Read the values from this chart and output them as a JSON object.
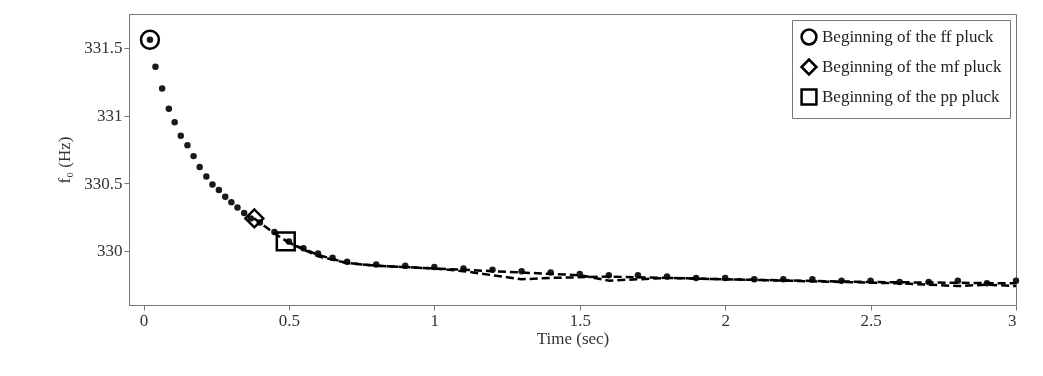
{
  "chart_data": {
    "type": "line",
    "xlabel": "Time (sec)",
    "ylabel": "f₀ (Hz)",
    "xlim": [
      -0.05,
      3
    ],
    "ylim": [
      329.6,
      331.75
    ],
    "xticks": [
      0,
      0.5,
      1,
      1.5,
      2,
      2.5,
      3
    ],
    "yticks": [
      330,
      330.5,
      331,
      331.5
    ],
    "grid": false,
    "legend": "top right",
    "series": [
      {
        "type": "scatter",
        "marker": "circle",
        "color": "#1a1a1a",
        "x": [
          0.022,
          0.041,
          0.064,
          0.087,
          0.107,
          0.128,
          0.151,
          0.172,
          0.193,
          0.216,
          0.237,
          0.259,
          0.281,
          0.302,
          0.323,
          0.346,
          0.369,
          0.4,
          0.45,
          0.5,
          0.55,
          0.6,
          0.65,
          0.7,
          0.8,
          0.9,
          1.0,
          1.1,
          1.2,
          1.3,
          1.4,
          1.5,
          1.6,
          1.7,
          1.8,
          1.9,
          2.0,
          2.1,
          2.2,
          2.3,
          2.4,
          2.5,
          2.6,
          2.7,
          2.8,
          2.9,
          3.0
        ],
        "values": [
          331.56,
          331.36,
          331.2,
          331.05,
          330.95,
          330.85,
          330.78,
          330.7,
          330.62,
          330.55,
          330.49,
          330.45,
          330.4,
          330.36,
          330.32,
          330.28,
          330.24,
          330.21,
          330.14,
          330.07,
          330.02,
          329.98,
          329.95,
          329.92,
          329.9,
          329.89,
          329.88,
          329.87,
          329.86,
          329.85,
          329.84,
          329.83,
          329.82,
          329.82,
          329.81,
          329.8,
          329.8,
          329.79,
          329.79,
          329.79,
          329.78,
          329.78,
          329.77,
          329.77,
          329.78,
          329.76,
          329.78
        ]
      },
      {
        "type": "line",
        "line_style": "dashed",
        "color": "#000000",
        "x": [
          0.38,
          0.45,
          0.5,
          0.6,
          0.7,
          0.8,
          1.0,
          1.1,
          1.2,
          1.3,
          1.4,
          1.6,
          1.8,
          2.0,
          2.5,
          3.0
        ],
        "values": [
          330.24,
          330.13,
          330.06,
          329.96,
          329.91,
          329.89,
          329.87,
          329.85,
          329.82,
          329.79,
          329.8,
          329.81,
          329.8,
          329.79,
          329.77,
          329.76
        ]
      },
      {
        "type": "line",
        "line_style": "dashed",
        "color": "#000000",
        "x": [
          0.49,
          0.6,
          0.7,
          0.8,
          1.0,
          1.2,
          1.4,
          1.5,
          1.6,
          1.8,
          2.0,
          2.2,
          2.4,
          2.6,
          2.8,
          2.9,
          3.0
        ],
        "values": [
          330.07,
          329.97,
          329.91,
          329.89,
          329.87,
          329.85,
          329.83,
          329.82,
          329.78,
          329.8,
          329.79,
          329.78,
          329.77,
          329.76,
          329.74,
          329.75,
          329.74
        ]
      },
      {
        "type": "scatter",
        "name": "Beginning of the ff pluck",
        "marker": "circle",
        "color": "#000000",
        "x": [
          0.022
        ],
        "values": [
          331.56
        ]
      },
      {
        "type": "scatter",
        "name": "Beginning of the mf pluck",
        "marker": "diamond",
        "color": "#000000",
        "x": [
          0.381
        ],
        "values": [
          330.24
        ]
      },
      {
        "type": "scatter",
        "name": "Beginning of the pp pluck",
        "marker": "square",
        "color": "#000000",
        "x": [
          0.489
        ],
        "values": [
          330.07
        ]
      }
    ]
  }
}
